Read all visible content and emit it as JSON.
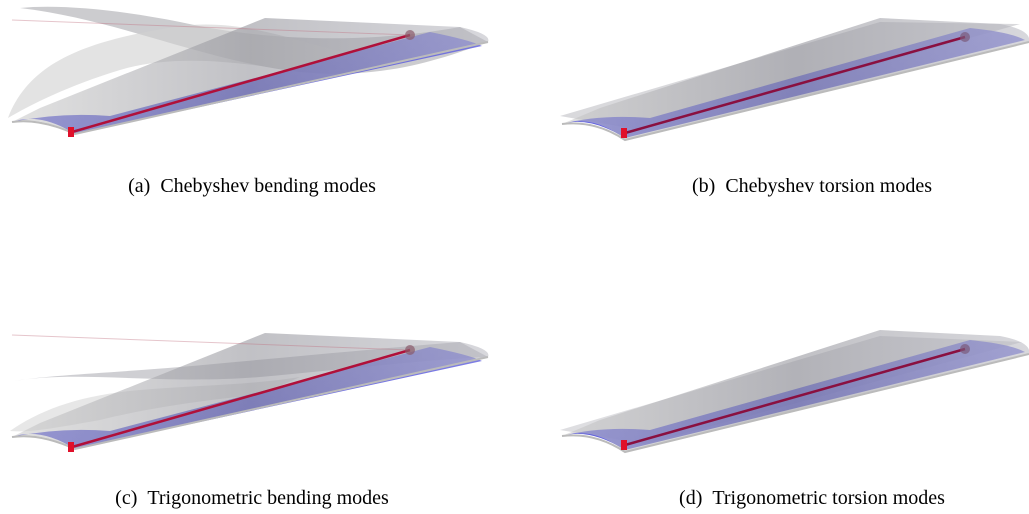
{
  "figure": {
    "subfigures": [
      {
        "label": "(a)",
        "caption": "Chebyshev bending modes"
      },
      {
        "label": "(b)",
        "caption": "Chebyshev torsion modes"
      },
      {
        "label": "(c)",
        "caption": "Trigonometric bending modes"
      },
      {
        "label": "(d)",
        "caption": "Trigonometric torsion modes"
      }
    ]
  }
}
